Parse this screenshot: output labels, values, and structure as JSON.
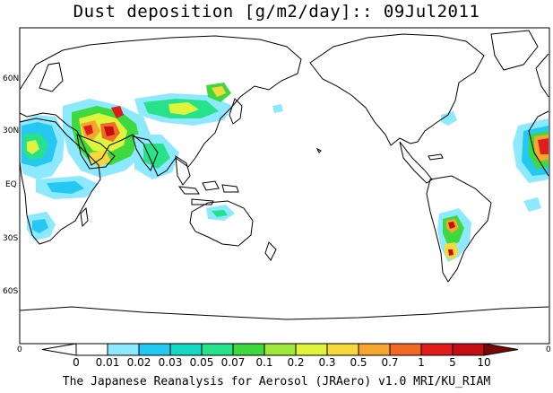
{
  "title": "Dust deposition [g/m2/day]:: 09Jul2011",
  "credit": "The Japanese Reanalysis for Aerosol (JRAero) v1.0 MRI/KU_RIAM",
  "lat_labels": [
    "60N",
    "30N",
    "EQ",
    "30S",
    "60S"
  ],
  "edge_labels": {
    "left": "0",
    "right": "0"
  },
  "colorbar": {
    "labels": [
      "0",
      "0.01",
      "0.02",
      "0.03",
      "0.05",
      "0.07",
      "0.1",
      "0.2",
      "0.3",
      "0.5",
      "0.7",
      "1",
      "5",
      "10"
    ],
    "colors": [
      "#ffffff",
      "#8ce9ff",
      "#25c8f0",
      "#13d8c2",
      "#27e28a",
      "#3ed93e",
      "#9fe83c",
      "#e0f43c",
      "#f7d83a",
      "#f6a62e",
      "#f06a26",
      "#e21b1b",
      "#c40e14",
      "#9e0a0f",
      "#7a0406"
    ]
  }
}
